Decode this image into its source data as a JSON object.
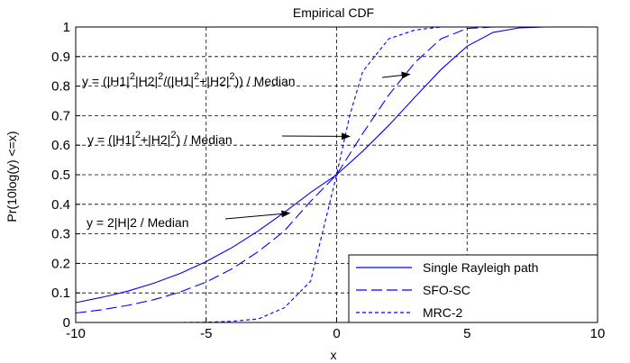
{
  "chart_data": {
    "type": "line",
    "title": "Empirical CDF",
    "xlabel": "x",
    "ylabel": "Pr(10log(y) <=x)",
    "xlim": [
      -10,
      10
    ],
    "ylim": [
      0,
      1
    ],
    "xticks": [
      "-10",
      "-5",
      "0",
      "5",
      "10"
    ],
    "yticks": [
      "0",
      "0.1",
      "0.2",
      "0.3",
      "0.4",
      "0.5",
      "0.6",
      "0.7",
      "0.8",
      "0.9",
      "1"
    ],
    "grid": true,
    "legend_position": "bottom-right",
    "series": [
      {
        "name": "Single Rayleigh path",
        "style": "solid",
        "color": "#0000ff",
        "x": [
          -10,
          -9,
          -8,
          -7,
          -6,
          -5,
          -4,
          -3,
          -2,
          -1,
          0,
          1,
          2,
          3,
          4,
          5,
          6,
          7,
          8,
          9,
          10
        ],
        "y": [
          0.067,
          0.085,
          0.106,
          0.133,
          0.166,
          0.206,
          0.254,
          0.31,
          0.373,
          0.44,
          0.5,
          0.58,
          0.667,
          0.763,
          0.856,
          0.935,
          0.982,
          0.997,
          1.0,
          1.0,
          1.0
        ]
      },
      {
        "name": "SFO-SC",
        "style": "dashed",
        "color": "#0000ff",
        "x": [
          -10,
          -9,
          -8,
          -7,
          -6,
          -5,
          -4,
          -3,
          -2,
          -1,
          0,
          1,
          2,
          3,
          4,
          5,
          6,
          7,
          8,
          9,
          10
        ],
        "y": [
          0.032,
          0.043,
          0.058,
          0.077,
          0.103,
          0.137,
          0.182,
          0.24,
          0.31,
          0.41,
          0.5,
          0.64,
          0.77,
          0.88,
          0.96,
          0.995,
          1.0,
          1.0,
          1.0,
          1.0,
          1.0
        ]
      },
      {
        "name": "MRC-2",
        "style": "dotted",
        "color": "#0000ff",
        "x": [
          -8.3,
          -7,
          -6,
          -5,
          -4,
          -3,
          -2,
          -1,
          0,
          0.5,
          1,
          2,
          3,
          4,
          5
        ],
        "y": [
          0.0,
          0.0,
          0.0,
          0.001,
          0.004,
          0.012,
          0.05,
          0.14,
          0.5,
          0.7,
          0.85,
          0.96,
          0.99,
          1.0,
          1.0
        ]
      }
    ],
    "annotations": [
      {
        "id": "ann1",
        "text_parts": [
          "y = (|H",
          "1",
          "|",
          "2",
          "|H",
          "2",
          "|",
          "2",
          "/(|H",
          "1",
          "|",
          "2",
          "+|H",
          "2",
          "|",
          "2",
          ")) / Median"
        ],
        "arrow_to": [
          2.8,
          0.84
        ]
      },
      {
        "id": "ann2",
        "text_parts": [
          "y = (|H",
          "1",
          "|",
          "2",
          "+|H",
          "2",
          "|",
          "2",
          ") / Median"
        ],
        "arrow_to": [
          0.5,
          0.63
        ]
      },
      {
        "id": "ann3",
        "text_parts": [
          "y = 2|H|",
          "2",
          " / Median"
        ],
        "arrow_to": [
          -1.8,
          0.37
        ]
      }
    ]
  }
}
